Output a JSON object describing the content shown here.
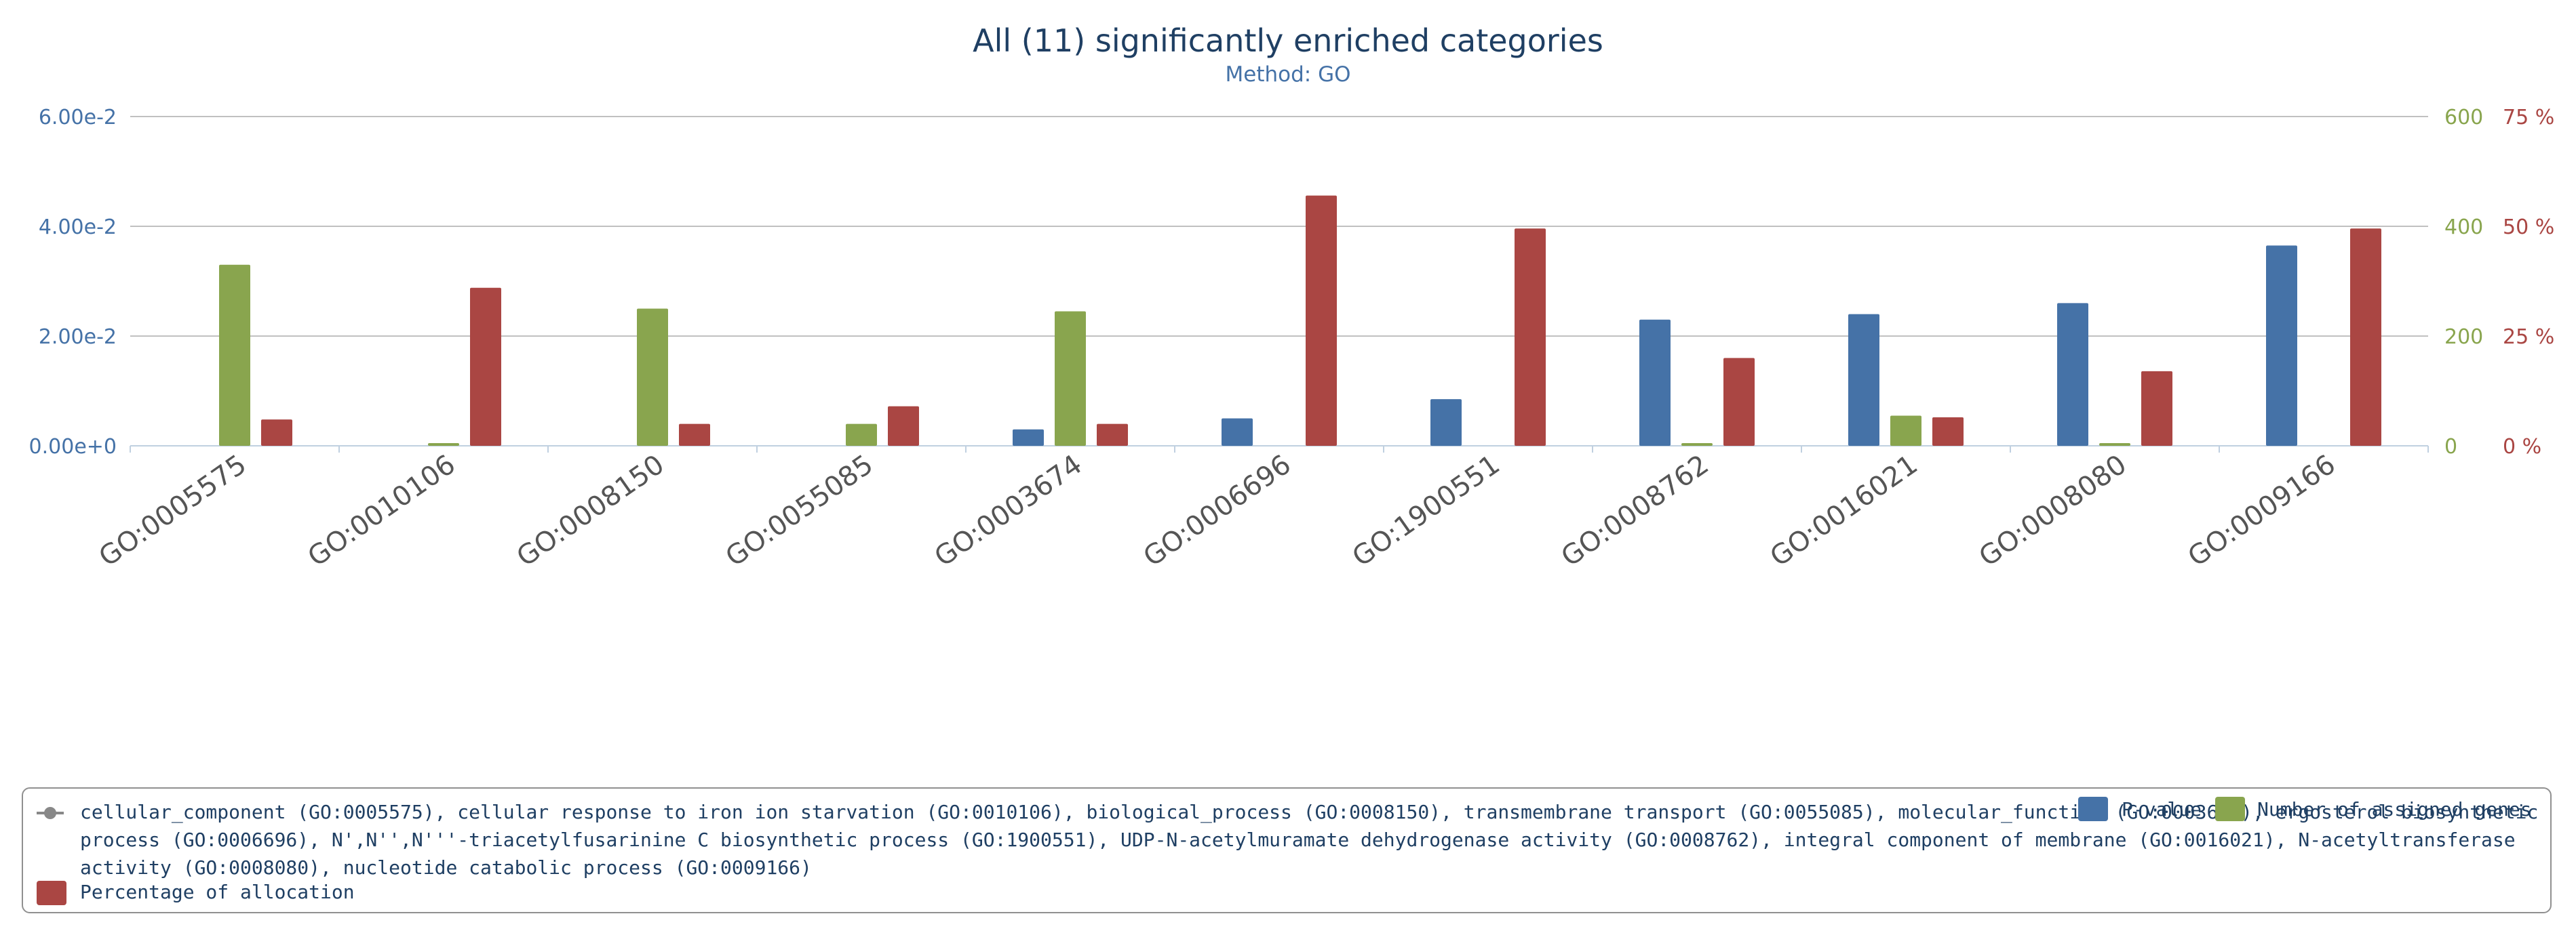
{
  "chart_data": {
    "type": "bar",
    "title": "All (11) significantly enriched categories",
    "subtitle": "Method: GO",
    "categories": [
      "GO:0005575",
      "GO:0010106",
      "GO:0008150",
      "GO:0055085",
      "GO:0003674",
      "GO:0006696",
      "GO:1900551",
      "GO:0008762",
      "GO:0016021",
      "GO:0008080",
      "GO:0009166"
    ],
    "series": [
      {
        "name": "P-value",
        "color": "#4572a7",
        "axis": "left",
        "values": [
          0,
          0,
          0,
          0,
          0.003,
          0.005,
          0.0085,
          0.023,
          0.024,
          0.026,
          0.0365
        ]
      },
      {
        "name": "Number of assigned genes",
        "color": "#89a54e",
        "axis": "middle",
        "values": [
          330,
          5,
          250,
          40,
          245,
          0,
          0,
          5,
          55,
          5,
          0
        ]
      },
      {
        "name": "Percentage of allocation",
        "color": "#aa4643",
        "axis": "right",
        "values": [
          6,
          36,
          5,
          9,
          5,
          57,
          49.5,
          20,
          6.5,
          17,
          49.5
        ]
      }
    ],
    "axes": {
      "left": {
        "ylim": [
          0,
          0.06
        ],
        "ticks": [
          "0.00e+0",
          "2.00e-2",
          "4.00e-2",
          "6.00e-2"
        ]
      },
      "middle": {
        "ylim": [
          0,
          600
        ],
        "ticks": [
          "0",
          "200",
          "400",
          "600"
        ]
      },
      "right": {
        "ylim": [
          0,
          75
        ],
        "ticks": [
          "0 %",
          "25 %",
          "50 %",
          "75 %"
        ]
      }
    },
    "grid": true,
    "legend_position": "bottom"
  },
  "legend": {
    "categories_text": "cellular_component (GO:0005575), cellular response to iron ion starvation (GO:0010106), biological_process (GO:0008150), transmembrane transport (GO:0055085), molecular_function (GO:0003674), ergosterol biosynthetic process (GO:0006696), N',N'',N'''-triacetylfusarinine C biosynthetic process (GO:1900551), UDP-N-acetylmuramate dehydrogenase activity (GO:0008762), integral component of membrane (GO:0016021), N-acetyltransferase activity (GO:0008080), nucleotide catabolic process (GO:0009166)",
    "pvalue_label": "P-value",
    "genes_label": "Number of assigned genes",
    "percentage_label": "Percentage of allocation"
  }
}
